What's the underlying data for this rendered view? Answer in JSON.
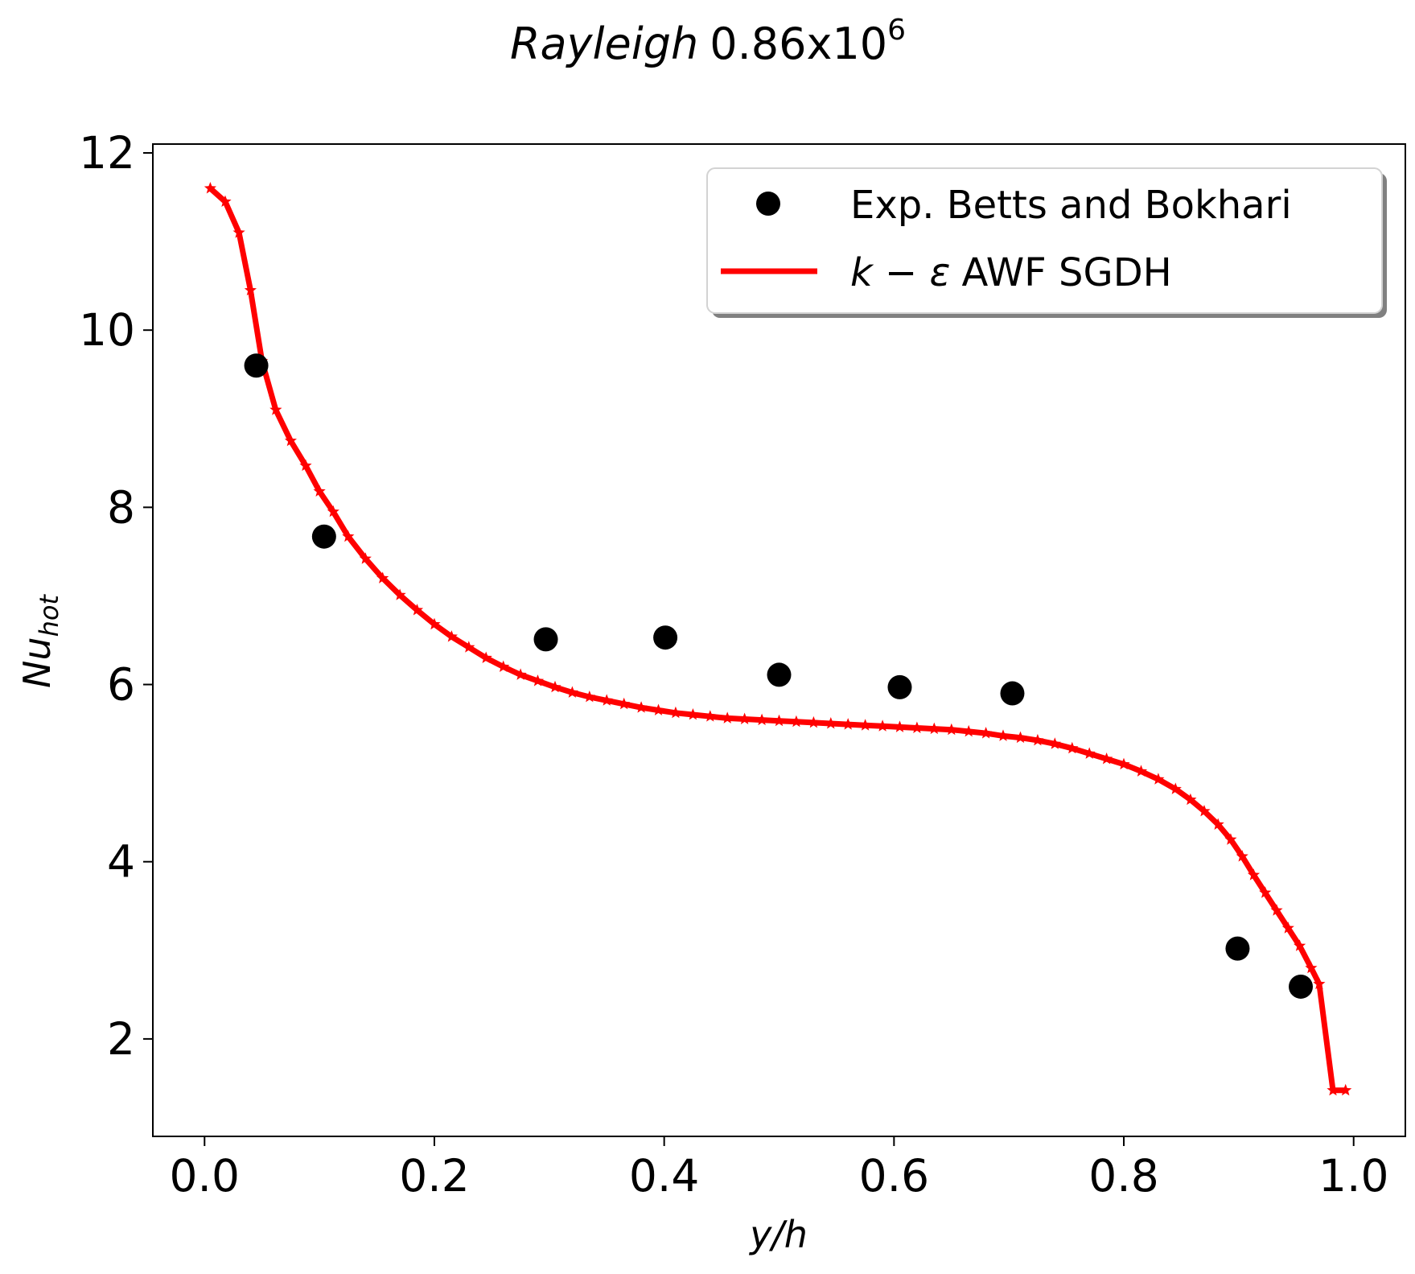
{
  "chart_data": {
    "type": "line",
    "title": {
      "prefix": "Rayleigh",
      "value": "0.86x10",
      "exponent": "6"
    },
    "xlabel": "y/h",
    "ylabel": {
      "main": "Nu",
      "subscript": "hot"
    },
    "xlim": [
      -0.045,
      1.045
    ],
    "ylim": [
      0.9,
      12.1
    ],
    "xticks": [
      {
        "value": 0.0,
        "label": "0.0"
      },
      {
        "value": 0.2,
        "label": "0.2"
      },
      {
        "value": 0.4,
        "label": "0.4"
      },
      {
        "value": 0.6,
        "label": "0.6"
      },
      {
        "value": 0.8,
        "label": "0.8"
      },
      {
        "value": 1.0,
        "label": "1.0"
      }
    ],
    "yticks": [
      {
        "value": 2,
        "label": "2"
      },
      {
        "value": 4,
        "label": "4"
      },
      {
        "value": 6,
        "label": "6"
      },
      {
        "value": 8,
        "label": "8"
      },
      {
        "value": 10,
        "label": "10"
      },
      {
        "value": 12,
        "label": "12"
      }
    ],
    "grid": false,
    "legend_position": "top-right",
    "series": [
      {
        "name": "Exp. Betts and Bokhari",
        "kind": "scatter",
        "marker": "circle",
        "color": "#000000",
        "x": [
          0.045,
          0.104,
          0.297,
          0.401,
          0.5,
          0.605,
          0.703,
          0.899,
          0.954
        ],
        "y": [
          9.6,
          7.67,
          6.51,
          6.53,
          6.11,
          5.97,
          5.9,
          3.02,
          2.59
        ]
      },
      {
        "name": "k − ε AWF SGDH",
        "name_parts": {
          "math": "k − ε",
          "rest": "AWF SGDH"
        },
        "kind": "line",
        "marker": "star",
        "color": "#ff0000",
        "x": [
          0.005,
          0.018,
          0.03,
          0.04,
          0.05,
          0.062,
          0.075,
          0.088,
          0.1,
          0.112,
          0.125,
          0.14,
          0.155,
          0.17,
          0.185,
          0.2,
          0.215,
          0.23,
          0.245,
          0.26,
          0.275,
          0.29,
          0.305,
          0.32,
          0.335,
          0.35,
          0.365,
          0.38,
          0.395,
          0.41,
          0.425,
          0.44,
          0.455,
          0.47,
          0.485,
          0.5,
          0.515,
          0.53,
          0.545,
          0.56,
          0.575,
          0.59,
          0.605,
          0.62,
          0.635,
          0.65,
          0.665,
          0.68,
          0.695,
          0.71,
          0.725,
          0.74,
          0.755,
          0.77,
          0.785,
          0.8,
          0.815,
          0.83,
          0.845,
          0.858,
          0.87,
          0.882,
          0.893,
          0.903,
          0.913,
          0.923,
          0.933,
          0.943,
          0.953,
          0.963,
          0.97,
          0.982,
          0.993
        ],
        "y": [
          11.6,
          11.45,
          11.1,
          10.45,
          9.65,
          9.1,
          8.75,
          8.47,
          8.18,
          7.95,
          7.67,
          7.42,
          7.2,
          7.01,
          6.84,
          6.68,
          6.54,
          6.42,
          6.3,
          6.2,
          6.11,
          6.04,
          5.97,
          5.91,
          5.86,
          5.82,
          5.78,
          5.74,
          5.71,
          5.68,
          5.66,
          5.64,
          5.62,
          5.61,
          5.6,
          5.59,
          5.58,
          5.57,
          5.56,
          5.55,
          5.54,
          5.53,
          5.52,
          5.51,
          5.5,
          5.49,
          5.47,
          5.45,
          5.42,
          5.4,
          5.37,
          5.33,
          5.28,
          5.22,
          5.16,
          5.1,
          5.02,
          4.93,
          4.82,
          4.7,
          4.57,
          4.42,
          4.25,
          4.06,
          3.85,
          3.65,
          3.45,
          3.25,
          3.05,
          2.8,
          2.62,
          1.42,
          1.42
        ]
      }
    ]
  }
}
